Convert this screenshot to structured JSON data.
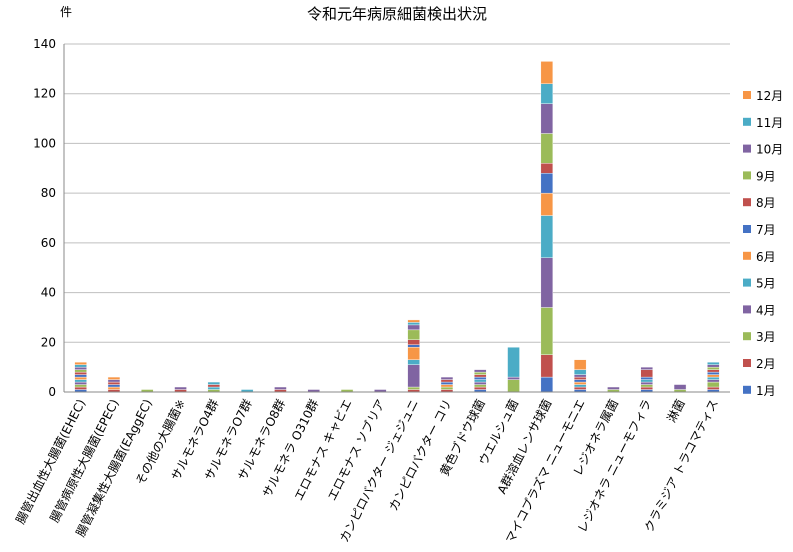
{
  "chart_data": {
    "type": "bar",
    "stacked": true,
    "title": "令和元年病原細菌検出状況",
    "ylabel": "件",
    "xlabel": "",
    "ylim": [
      0,
      140
    ],
    "yticks": [
      0,
      20,
      40,
      60,
      80,
      100,
      120,
      140
    ],
    "grid": true,
    "legend_position": "right",
    "categories": [
      "腸管出血性大腸菌(EHEC)",
      "腸管病原性大腸菌(EPEC)",
      "腸管凝集性大腸菌(EAggEC)",
      "その他の大腸菌※",
      "サルモネラO4群",
      "サルモネラO7群",
      "サルモネラO8群",
      "サルモネラ O310群",
      "エロモナス キャビエ",
      "エロモナス ソブリア",
      "カンピロバクター ジェジュニ",
      "カンピロバクター コリ",
      "黄色ブドウ球菌",
      "ウエルシュ菌",
      "A群溶血レンサ球菌",
      "マイコプラズマ ニューモニエ",
      "レジオネラ属菌",
      "レジオネラ ニューモフィラ",
      "淋菌",
      "クラミジア トラコマティス"
    ],
    "series": [
      {
        "name": "1月",
        "color": "#4472c4",
        "values": [
          1,
          0,
          0,
          0,
          0,
          0,
          0,
          0,
          0,
          0,
          0,
          0,
          1,
          0,
          6,
          1,
          0,
          1,
          0,
          1
        ]
      },
      {
        "name": "2月",
        "color": "#c0504d",
        "values": [
          1,
          1,
          0,
          0,
          0,
          0,
          1,
          0,
          0,
          0,
          1,
          1,
          1,
          0,
          9,
          1,
          0,
          1,
          0,
          1
        ]
      },
      {
        "name": "3月",
        "color": "#9bbb59",
        "values": [
          1,
          0,
          1,
          0,
          1,
          0,
          0,
          0,
          1,
          0,
          1,
          1,
          1,
          5,
          19,
          0,
          1,
          1,
          1,
          2
        ]
      },
      {
        "name": "4月",
        "color": "#8064a2",
        "values": [
          1,
          0,
          0,
          0,
          0,
          0,
          0,
          1,
          0,
          1,
          9,
          0,
          1,
          1,
          20,
          0,
          0,
          1,
          2,
          1
        ]
      },
      {
        "name": "5月",
        "color": "#4bacc6",
        "values": [
          1,
          0,
          0,
          0,
          1,
          1,
          0,
          0,
          0,
          0,
          2,
          0,
          1,
          12,
          17,
          1,
          0,
          1,
          0,
          1
        ]
      },
      {
        "name": "6月",
        "color": "#f79646",
        "values": [
          1,
          1,
          0,
          0,
          0,
          0,
          0,
          0,
          0,
          0,
          5,
          1,
          0,
          0,
          9,
          1,
          0,
          0,
          0,
          1
        ]
      },
      {
        "name": "7月",
        "color": "#4472c4",
        "values": [
          1,
          1,
          0,
          0,
          0,
          0,
          0,
          0,
          0,
          0,
          1,
          1,
          1,
          0,
          8,
          1,
          0,
          1,
          0,
          1
        ]
      },
      {
        "name": "8月",
        "color": "#c0504d",
        "values": [
          1,
          1,
          0,
          1,
          1,
          0,
          0,
          0,
          0,
          0,
          2,
          1,
          1,
          0,
          4,
          1,
          0,
          3,
          0,
          1
        ]
      },
      {
        "name": "9月",
        "color": "#9bbb59",
        "values": [
          1,
          0,
          0,
          0,
          0,
          0,
          0,
          0,
          0,
          0,
          4,
          0,
          1,
          0,
          12,
          0,
          0,
          0,
          0,
          1
        ]
      },
      {
        "name": "10月",
        "color": "#8064a2",
        "values": [
          1,
          1,
          0,
          1,
          0,
          0,
          1,
          0,
          0,
          0,
          2,
          1,
          1,
          0,
          12,
          1,
          1,
          1,
          0,
          1
        ]
      },
      {
        "name": "11月",
        "color": "#4bacc6",
        "values": [
          1,
          0,
          0,
          0,
          1,
          0,
          0,
          0,
          0,
          0,
          1,
          0,
          0,
          0,
          8,
          2,
          0,
          0,
          0,
          1
        ]
      },
      {
        "name": "12月",
        "color": "#f79646",
        "values": [
          1,
          1,
          0,
          0,
          0,
          0,
          0,
          0,
          0,
          0,
          1,
          0,
          0,
          0,
          9,
          4,
          0,
          0,
          0,
          0
        ]
      }
    ]
  }
}
